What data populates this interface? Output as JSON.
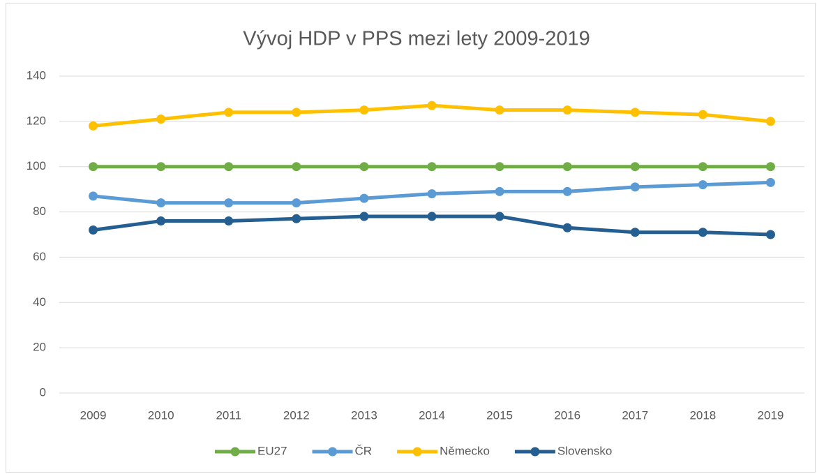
{
  "chart_data": {
    "type": "line",
    "title": "Vývoj HDP v PPS mezi lety 2009-2019",
    "categories": [
      "2009",
      "2010",
      "2011",
      "2012",
      "2013",
      "2014",
      "2015",
      "2016",
      "2017",
      "2018",
      "2019"
    ],
    "series": [
      {
        "name": "EU27",
        "color": "#70ad47",
        "values": [
          100,
          100,
          100,
          100,
          100,
          100,
          100,
          100,
          100,
          100,
          100
        ]
      },
      {
        "name": "ČR",
        "color": "#5b9bd5",
        "values": [
          87,
          84,
          84,
          84,
          86,
          88,
          89,
          89,
          91,
          92,
          93
        ]
      },
      {
        "name": "Německo",
        "color": "#ffc000",
        "values": [
          118,
          121,
          124,
          124,
          125,
          127,
          125,
          125,
          124,
          123,
          120
        ]
      },
      {
        "name": "Slovensko",
        "color": "#255e91",
        "values": [
          72,
          76,
          76,
          77,
          78,
          78,
          78,
          73,
          71,
          71,
          70
        ]
      }
    ],
    "ylim": [
      0,
      140
    ],
    "yticks": [
      0,
      20,
      40,
      60,
      80,
      100,
      120,
      140
    ],
    "grid": true,
    "legend": "bottom"
  }
}
